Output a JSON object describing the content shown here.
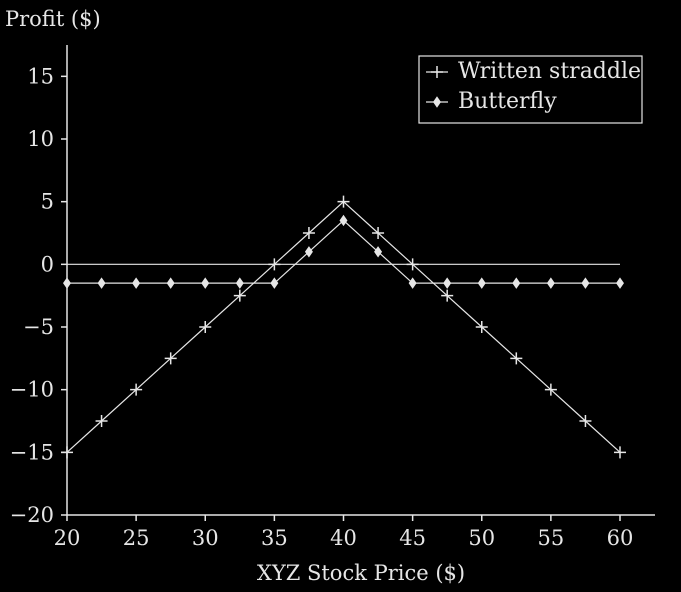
{
  "chart_data": {
    "type": "line",
    "ylabel": "Profit ($)",
    "xlabel": "XYZ Stock Price ($)",
    "xlim": [
      20,
      60
    ],
    "ylim": [
      -20,
      17.5
    ],
    "x_ticks": [
      20,
      25,
      30,
      35,
      40,
      45,
      50,
      55,
      60
    ],
    "y_ticks": [
      15,
      10,
      5,
      0,
      -5,
      -10,
      -15,
      -20
    ],
    "y_tick_labels": [
      "15",
      "10",
      "5",
      "0",
      "−5",
      "−10",
      "−15",
      "−20"
    ],
    "grid": false,
    "zero_line": true,
    "legend_position": "top-right",
    "series": [
      {
        "name": "Written straddle",
        "marker": "plus",
        "color": "#e6e6e6",
        "points": [
          [
            20,
            -15
          ],
          [
            22.5,
            -12.5
          ],
          [
            25,
            -10
          ],
          [
            27.5,
            -7.5
          ],
          [
            30,
            -5
          ],
          [
            32.5,
            -2.5
          ],
          [
            35,
            0
          ],
          [
            37.5,
            2.5
          ],
          [
            40,
            5
          ],
          [
            42.5,
            2.5
          ],
          [
            45,
            0
          ],
          [
            47.5,
            -2.5
          ],
          [
            50,
            -5
          ],
          [
            52.5,
            -7.5
          ],
          [
            55,
            -10
          ],
          [
            57.5,
            -12.5
          ],
          [
            60,
            -15
          ]
        ]
      },
      {
        "name": "Butterfly",
        "marker": "diamond",
        "color": "#e6e6e6",
        "points": [
          [
            20,
            -1.5
          ],
          [
            22.5,
            -1.5
          ],
          [
            25,
            -1.5
          ],
          [
            27.5,
            -1.5
          ],
          [
            30,
            -1.5
          ],
          [
            32.5,
            -1.5
          ],
          [
            35,
            -1.5
          ],
          [
            37.5,
            1
          ],
          [
            40,
            3.5
          ],
          [
            42.5,
            1
          ],
          [
            45,
            -1.5
          ],
          [
            47.5,
            -1.5
          ],
          [
            50,
            -1.5
          ],
          [
            52.5,
            -1.5
          ],
          [
            55,
            -1.5
          ],
          [
            57.5,
            -1.5
          ],
          [
            60,
            -1.5
          ]
        ]
      }
    ]
  }
}
